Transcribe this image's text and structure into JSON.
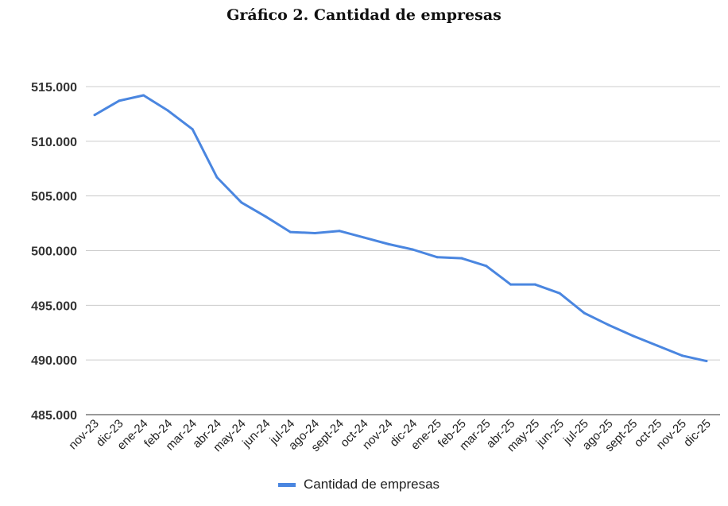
{
  "chart_data": {
    "type": "line",
    "title": "Gráfico 2. Cantidad de empresas",
    "xlabel": "",
    "ylabel": "",
    "ylim": [
      485000,
      515000
    ],
    "yticks": [
      485000,
      490000,
      495000,
      500000,
      505000,
      510000,
      515000
    ],
    "ytick_labels": [
      "485.000",
      "490.000",
      "495.000",
      "500.000",
      "505.000",
      "510.000",
      "515.000"
    ],
    "grid": true,
    "legend_position": "bottom",
    "color": "#4a86e0",
    "categories": [
      "nov-23",
      "dic-23",
      "ene-24",
      "feb-24",
      "mar-24",
      "abr-24",
      "may-24",
      "jun-24",
      "jul-24",
      "ago-24",
      "sept-24",
      "oct-24",
      "nov-24",
      "dic-24",
      "ene-25",
      "feb-25",
      "mar-25",
      "abr-25",
      "may-25",
      "jun-25",
      "jul-25",
      "ago-25",
      "sept-25",
      "oct-25",
      "nov-25",
      "dic-25"
    ],
    "series": [
      {
        "name": "Cantidad de empresas",
        "values": [
          512400,
          513700,
          514200,
          512800,
          511100,
          506700,
          504400,
          503100,
          501700,
          501600,
          501800,
          501200,
          500600,
          500100,
          499400,
          499300,
          498600,
          496900,
          496900,
          496100,
          494300,
          493200,
          492200,
          491300,
          490400,
          489900
        ]
      }
    ]
  }
}
